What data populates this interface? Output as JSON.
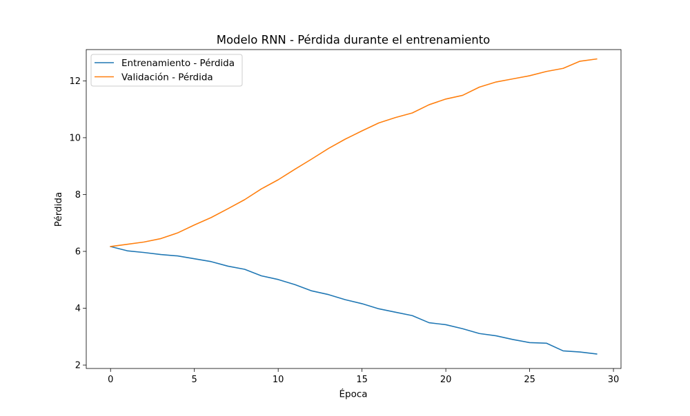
{
  "chart_data": {
    "type": "line",
    "title": "Modelo RNN - Pérdida durante el entrenamiento",
    "xlabel": "Época",
    "ylabel": "Pérdida",
    "xlim": [
      -1.45,
      30.45
    ],
    "ylim": [
      1.88,
      13.1
    ],
    "xticks": [
      0,
      5,
      10,
      15,
      20,
      25,
      30
    ],
    "yticks": [
      2,
      4,
      6,
      8,
      10,
      12
    ],
    "grid": false,
    "legend_position": "top-left",
    "x": [
      0,
      1,
      2,
      3,
      4,
      5,
      6,
      7,
      8,
      9,
      10,
      11,
      12,
      13,
      14,
      15,
      16,
      17,
      18,
      19,
      20,
      21,
      22,
      23,
      24,
      25,
      26,
      27,
      28,
      29
    ],
    "series": [
      {
        "name": "Entrenamiento - Pérdida",
        "color": "#1f77b4",
        "values": [
          6.17,
          6.02,
          5.96,
          5.89,
          5.84,
          5.74,
          5.64,
          5.48,
          5.37,
          5.14,
          5.01,
          4.83,
          4.61,
          4.48,
          4.3,
          4.16,
          3.98,
          3.86,
          3.74,
          3.49,
          3.42,
          3.28,
          3.11,
          3.03,
          2.9,
          2.79,
          2.77,
          2.5,
          2.46,
          2.39
        ]
      },
      {
        "name": "Validación - Pérdida",
        "color": "#ff7f0e",
        "values": [
          6.17,
          6.25,
          6.33,
          6.45,
          6.65,
          6.93,
          7.19,
          7.5,
          7.82,
          8.2,
          8.52,
          8.89,
          9.25,
          9.62,
          9.95,
          10.24,
          10.52,
          10.71,
          10.87,
          11.16,
          11.36,
          11.49,
          11.78,
          11.96,
          12.07,
          12.18,
          12.33,
          12.44,
          12.69,
          12.77
        ]
      }
    ]
  }
}
